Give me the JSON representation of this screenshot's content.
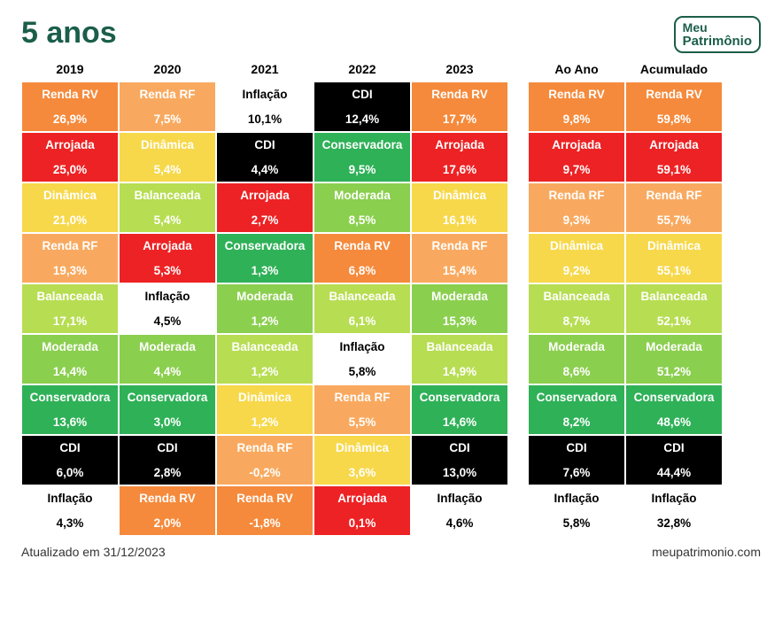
{
  "title": "5 anos",
  "logo": {
    "line1": "Meu",
    "line2": "Patrimônio"
  },
  "footer": {
    "left": "Atualizado em 31/12/2023",
    "right": "meupatrimonio.com"
  },
  "colors": {
    "Renda RV": {
      "bg": "#f58a3c",
      "fg": "#ffffff"
    },
    "Renda RF": {
      "bg": "#f9a95f",
      "fg": "#ffffff"
    },
    "Arrojada": {
      "bg": "#ed2224",
      "fg": "#ffffff"
    },
    "Dinâmica": {
      "bg": "#f7d84a",
      "fg": "#ffffff"
    },
    "Balanceada": {
      "bg": "#b7dd52",
      "fg": "#ffffff"
    },
    "Moderada": {
      "bg": "#8bcf4f",
      "fg": "#ffffff"
    },
    "Conservadora": {
      "bg": "#2fb157",
      "fg": "#ffffff"
    },
    "CDI": {
      "bg": "#000000",
      "fg": "#ffffff"
    },
    "Inflação": {
      "bg": "#ffffff",
      "fg": "#000000"
    }
  },
  "years": [
    "2019",
    "2020",
    "2021",
    "2022",
    "2023"
  ],
  "summaryHeaders": [
    "Ao Ano",
    "Acumulado"
  ],
  "table": [
    [
      {
        "label": "Renda RV",
        "value": "26,9%"
      },
      {
        "label": "Renda RF",
        "value": "7,5%"
      },
      {
        "label": "Inflação",
        "value": "10,1%"
      },
      {
        "label": "CDI",
        "value": "12,4%"
      },
      {
        "label": "Renda RV",
        "value": "17,7%"
      }
    ],
    [
      {
        "label": "Arrojada",
        "value": "25,0%"
      },
      {
        "label": "Dinâmica",
        "value": "5,4%"
      },
      {
        "label": "CDI",
        "value": "4,4%"
      },
      {
        "label": "Conservadora",
        "value": "9,5%"
      },
      {
        "label": "Arrojada",
        "value": "17,6%"
      }
    ],
    [
      {
        "label": "Dinâmica",
        "value": "21,0%"
      },
      {
        "label": "Balanceada",
        "value": "5,4%"
      },
      {
        "label": "Arrojada",
        "value": "2,7%"
      },
      {
        "label": "Moderada",
        "value": "8,5%"
      },
      {
        "label": "Dinâmica",
        "value": "16,1%"
      }
    ],
    [
      {
        "label": "Renda RF",
        "value": "19,3%"
      },
      {
        "label": "Arrojada",
        "value": "5,3%"
      },
      {
        "label": "Conservadora",
        "value": "1,3%"
      },
      {
        "label": "Renda RV",
        "value": "6,8%"
      },
      {
        "label": "Renda RF",
        "value": "15,4%"
      }
    ],
    [
      {
        "label": "Balanceada",
        "value": "17,1%"
      },
      {
        "label": "Inflação",
        "value": "4,5%"
      },
      {
        "label": "Moderada",
        "value": "1,2%"
      },
      {
        "label": "Balanceada",
        "value": "6,1%"
      },
      {
        "label": "Moderada",
        "value": "15,3%"
      }
    ],
    [
      {
        "label": "Moderada",
        "value": "14,4%"
      },
      {
        "label": "Moderada",
        "value": "4,4%"
      },
      {
        "label": "Balanceada",
        "value": "1,2%"
      },
      {
        "label": "Inflação",
        "value": "5,8%"
      },
      {
        "label": "Balanceada",
        "value": "14,9%"
      }
    ],
    [
      {
        "label": "Conservadora",
        "value": "13,6%"
      },
      {
        "label": "Conservadora",
        "value": "3,0%"
      },
      {
        "label": "Dinâmica",
        "value": "1,2%"
      },
      {
        "label": "Renda RF",
        "value": "5,5%"
      },
      {
        "label": "Conservadora",
        "value": "14,6%"
      }
    ],
    [
      {
        "label": "CDI",
        "value": "6,0%"
      },
      {
        "label": "CDI",
        "value": "2,8%"
      },
      {
        "label": "Renda RF",
        "value": "-0,2%"
      },
      {
        "label": "Dinâmica",
        "value": "3,6%"
      },
      {
        "label": "CDI",
        "value": "13,0%"
      }
    ],
    [
      {
        "label": "Inflação",
        "value": "4,3%"
      },
      {
        "label": "Renda RV",
        "value": "2,0%"
      },
      {
        "label": "Renda RV",
        "value": "-1,8%"
      },
      {
        "label": "Arrojada",
        "value": "0,1%"
      },
      {
        "label": "Inflação",
        "value": "4,6%"
      }
    ]
  ],
  "summary": [
    [
      {
        "label": "Renda RV",
        "value": "9,8%"
      },
      {
        "label": "Renda RV",
        "value": "59,8%"
      }
    ],
    [
      {
        "label": "Arrojada",
        "value": "9,7%"
      },
      {
        "label": "Arrojada",
        "value": "59,1%"
      }
    ],
    [
      {
        "label": "Renda RF",
        "value": "9,3%"
      },
      {
        "label": "Renda RF",
        "value": "55,7%"
      }
    ],
    [
      {
        "label": "Dinâmica",
        "value": "9,2%"
      },
      {
        "label": "Dinâmica",
        "value": "55,1%"
      }
    ],
    [
      {
        "label": "Balanceada",
        "value": "8,7%"
      },
      {
        "label": "Balanceada",
        "value": "52,1%"
      }
    ],
    [
      {
        "label": "Moderada",
        "value": "8,6%"
      },
      {
        "label": "Moderada",
        "value": "51,2%"
      }
    ],
    [
      {
        "label": "Conservadora",
        "value": "8,2%"
      },
      {
        "label": "Conservadora",
        "value": "48,6%"
      }
    ],
    [
      {
        "label": "CDI",
        "value": "7,6%"
      },
      {
        "label": "CDI",
        "value": "44,4%"
      }
    ],
    [
      {
        "label": "Inflação",
        "value": "5,8%"
      },
      {
        "label": "Inflação",
        "value": "32,8%"
      }
    ]
  ]
}
